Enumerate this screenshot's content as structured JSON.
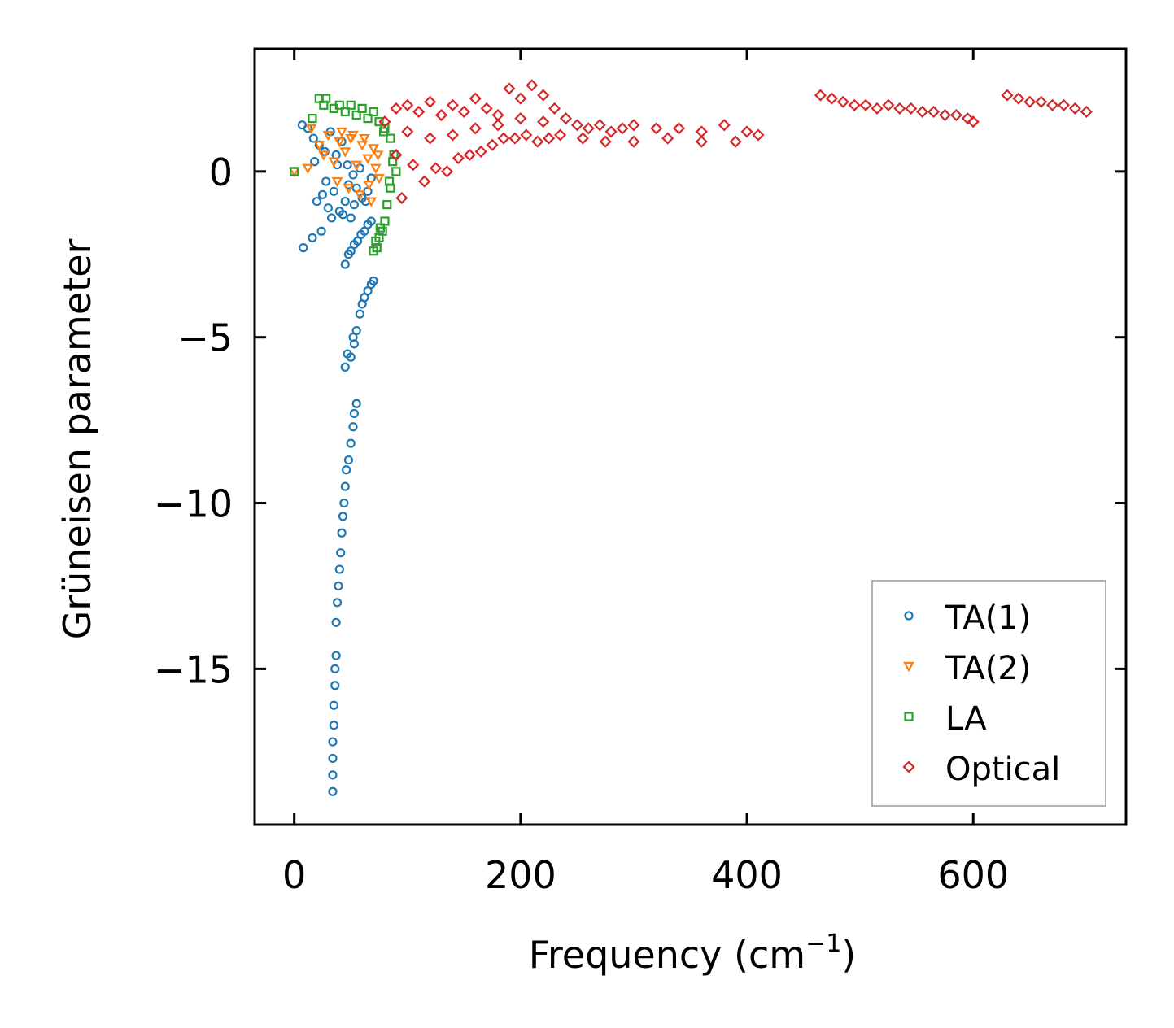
{
  "chart_data": {
    "type": "scatter",
    "title": "",
    "xlabel": "Frequency (cm",
    "xlabel_sup": "−1",
    "xlabel_end": ")",
    "ylabel": "Grüneisen parameter",
    "xlim": [
      -35,
      735
    ],
    "ylim": [
      -19.7,
      3.7
    ],
    "xticks": [
      0,
      200,
      400,
      600
    ],
    "xtick_labels": [
      "0",
      "200",
      "400",
      "600"
    ],
    "yticks": [
      0,
      -5,
      -10,
      -15
    ],
    "ytick_labels": [
      "0",
      "−5",
      "−10",
      "−15"
    ],
    "grid": false,
    "legend_position": "bottom-right",
    "series": [
      {
        "name": "TA(1)",
        "marker": "circle",
        "color": "#1f77b4",
        "points": [
          [
            7,
            1.4
          ],
          [
            12,
            1.3
          ],
          [
            17,
            1.0
          ],
          [
            22,
            0.8
          ],
          [
            27,
            0.6
          ],
          [
            32,
            1.2
          ],
          [
            37,
            0.5
          ],
          [
            42,
            0.9
          ],
          [
            47,
            0.2
          ],
          [
            52,
            -0.1
          ],
          [
            20,
            -0.9
          ],
          [
            25,
            -0.7
          ],
          [
            30,
            -1.1
          ],
          [
            35,
            -0.6
          ],
          [
            40,
            -1.2
          ],
          [
            45,
            -0.9
          ],
          [
            50,
            -1.4
          ],
          [
            55,
            -0.5
          ],
          [
            60,
            -0.8
          ],
          [
            65,
            -0.6
          ],
          [
            18,
            0.3
          ],
          [
            28,
            -0.3
          ],
          [
            38,
            0.2
          ],
          [
            48,
            -0.4
          ],
          [
            58,
            0.1
          ],
          [
            68,
            -0.2
          ],
          [
            33,
            -1.4
          ],
          [
            43,
            -1.3
          ],
          [
            53,
            -1.0
          ],
          [
            63,
            -0.9
          ],
          [
            8,
            -2.3
          ],
          [
            16,
            -2.0
          ],
          [
            24,
            -1.8
          ],
          [
            45,
            -2.8
          ],
          [
            48,
            -2.5
          ],
          [
            50,
            -2.4
          ],
          [
            53,
            -2.2
          ],
          [
            56,
            -2.1
          ],
          [
            59,
            -1.9
          ],
          [
            62,
            -1.8
          ],
          [
            65,
            -1.6
          ],
          [
            68,
            -1.5
          ],
          [
            55,
            -4.8
          ],
          [
            58,
            -4.3
          ],
          [
            60,
            -4.0
          ],
          [
            62,
            -3.8
          ],
          [
            65,
            -3.6
          ],
          [
            68,
            -3.4
          ],
          [
            70,
            -3.3
          ],
          [
            53,
            -5.2
          ],
          [
            50,
            -5.6
          ],
          [
            45,
            -5.9
          ],
          [
            47,
            -5.5
          ],
          [
            52,
            -5.0
          ],
          [
            55,
            -7.0
          ],
          [
            53,
            -7.3
          ],
          [
            52,
            -7.7
          ],
          [
            50,
            -8.2
          ],
          [
            48,
            -8.7
          ],
          [
            46,
            -9.0
          ],
          [
            45,
            -9.5
          ],
          [
            44,
            -10.0
          ],
          [
            43,
            -10.4
          ],
          [
            42,
            -10.9
          ],
          [
            41,
            -11.5
          ],
          [
            40,
            -12.0
          ],
          [
            39,
            -12.5
          ],
          [
            38,
            -13.0
          ],
          [
            37,
            -13.6
          ],
          [
            37,
            -14.6
          ],
          [
            36,
            -15.0
          ],
          [
            36,
            -15.5
          ],
          [
            35,
            -16.1
          ],
          [
            35,
            -16.7
          ],
          [
            34,
            -17.2
          ],
          [
            34,
            -17.7
          ],
          [
            34,
            -18.2
          ],
          [
            34,
            -18.7
          ]
        ]
      },
      {
        "name": "TA(2)",
        "marker": "triangle-down",
        "color": "#ff7f0e",
        "points": [
          [
            0,
            0.0
          ],
          [
            12,
            0.1
          ],
          [
            15,
            1.3
          ],
          [
            22,
            0.8
          ],
          [
            26,
            0.5
          ],
          [
            30,
            1.1
          ],
          [
            35,
            0.3
          ],
          [
            40,
            0.9
          ],
          [
            45,
            0.6
          ],
          [
            50,
            1.0
          ],
          [
            55,
            0.2
          ],
          [
            60,
            0.8
          ],
          [
            65,
            0.4
          ],
          [
            70,
            0.7
          ],
          [
            75,
            -0.2
          ],
          [
            38,
            -0.3
          ],
          [
            48,
            -0.5
          ],
          [
            58,
            -0.7
          ],
          [
            68,
            -0.9
          ],
          [
            72,
            0.1
          ],
          [
            42,
            1.2
          ],
          [
            52,
            1.1
          ],
          [
            62,
            1.0
          ],
          [
            66,
            -0.4
          ],
          [
            74,
            0.5
          ]
        ]
      },
      {
        "name": "LA",
        "marker": "square",
        "color": "#2ca02c",
        "points": [
          [
            0,
            0.0
          ],
          [
            16,
            1.6
          ],
          [
            22,
            2.2
          ],
          [
            28,
            2.2
          ],
          [
            26,
            2.0
          ],
          [
            35,
            1.9
          ],
          [
            40,
            2.0
          ],
          [
            45,
            1.8
          ],
          [
            50,
            2.0
          ],
          [
            55,
            1.7
          ],
          [
            60,
            1.9
          ],
          [
            65,
            1.6
          ],
          [
            70,
            1.8
          ],
          [
            75,
            1.5
          ],
          [
            80,
            1.3
          ],
          [
            85,
            1.0
          ],
          [
            88,
            0.5
          ],
          [
            90,
            0.0
          ],
          [
            85,
            -0.5
          ],
          [
            82,
            -1.0
          ],
          [
            80,
            -1.5
          ],
          [
            78,
            -1.8
          ],
          [
            75,
            -2.0
          ],
          [
            73,
            -2.3
          ],
          [
            70,
            -2.4
          ],
          [
            72,
            -2.1
          ],
          [
            76,
            -1.7
          ],
          [
            84,
            -0.3
          ],
          [
            87,
            0.3
          ],
          [
            79,
            1.2
          ]
        ]
      },
      {
        "name": "Optical",
        "marker": "diamond",
        "color": "#d62728",
        "points": [
          [
            80,
            1.5
          ],
          [
            90,
            1.9
          ],
          [
            100,
            2.0
          ],
          [
            110,
            1.8
          ],
          [
            120,
            2.1
          ],
          [
            130,
            1.7
          ],
          [
            140,
            2.0
          ],
          [
            150,
            1.8
          ],
          [
            160,
            2.2
          ],
          [
            170,
            1.9
          ],
          [
            180,
            1.7
          ],
          [
            190,
            2.5
          ],
          [
            200,
            2.2
          ],
          [
            210,
            2.6
          ],
          [
            220,
            2.3
          ],
          [
            230,
            1.9
          ],
          [
            240,
            1.6
          ],
          [
            250,
            1.4
          ],
          [
            260,
            1.3
          ],
          [
            270,
            1.4
          ],
          [
            280,
            1.2
          ],
          [
            290,
            1.3
          ],
          [
            300,
            1.4
          ],
          [
            320,
            1.3
          ],
          [
            340,
            1.3
          ],
          [
            360,
            1.2
          ],
          [
            380,
            1.4
          ],
          [
            400,
            1.2
          ],
          [
            410,
            1.1
          ],
          [
            90,
            0.5
          ],
          [
            95,
            -0.8
          ],
          [
            105,
            0.2
          ],
          [
            115,
            -0.3
          ],
          [
            125,
            0.1
          ],
          [
            135,
            0.0
          ],
          [
            145,
            0.4
          ],
          [
            155,
            0.5
          ],
          [
            165,
            0.6
          ],
          [
            175,
            0.8
          ],
          [
            185,
            1.0
          ],
          [
            195,
            1.0
          ],
          [
            205,
            1.1
          ],
          [
            215,
            0.9
          ],
          [
            225,
            1.0
          ],
          [
            235,
            1.1
          ],
          [
            255,
            1.0
          ],
          [
            275,
            0.9
          ],
          [
            300,
            0.9
          ],
          [
            330,
            1.0
          ],
          [
            360,
            0.9
          ],
          [
            390,
            0.9
          ],
          [
            100,
            1.2
          ],
          [
            120,
            1.0
          ],
          [
            140,
            1.1
          ],
          [
            160,
            1.3
          ],
          [
            180,
            1.4
          ],
          [
            200,
            1.6
          ],
          [
            220,
            1.5
          ],
          [
            465,
            2.3
          ],
          [
            475,
            2.2
          ],
          [
            485,
            2.1
          ],
          [
            495,
            2.0
          ],
          [
            505,
            2.0
          ],
          [
            515,
            1.9
          ],
          [
            525,
            2.0
          ],
          [
            535,
            1.9
          ],
          [
            545,
            1.9
          ],
          [
            555,
            1.8
          ],
          [
            565,
            1.8
          ],
          [
            575,
            1.7
          ],
          [
            585,
            1.7
          ],
          [
            595,
            1.6
          ],
          [
            600,
            1.5
          ],
          [
            630,
            2.3
          ],
          [
            640,
            2.2
          ],
          [
            650,
            2.1
          ],
          [
            660,
            2.1
          ],
          [
            670,
            2.0
          ],
          [
            680,
            2.0
          ],
          [
            690,
            1.9
          ],
          [
            700,
            1.8
          ]
        ]
      }
    ]
  }
}
